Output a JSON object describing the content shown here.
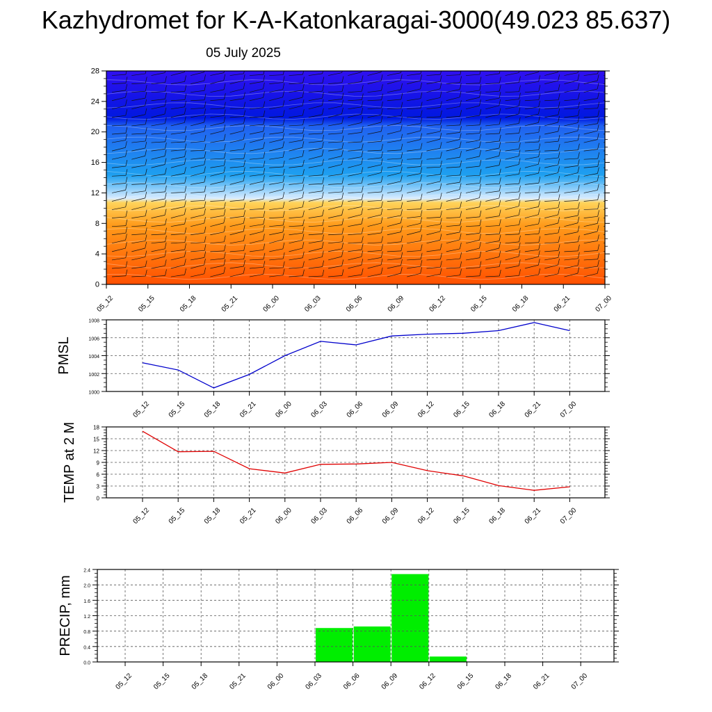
{
  "header": {
    "title": "Kazhydromet for K-A-Katonkaragai-3000(49.023 85.637)",
    "subtitle": "05 July 2025"
  },
  "colors": {
    "pmsl_line": "#0000cc",
    "temp_line": "#e00000",
    "precip_bar": "#00ee00",
    "cross_warm_low": "#ff5000",
    "cross_warm_high": "#ffd35a",
    "cross_cold_low": "#1ea0f0",
    "cross_cold_high": "#3010f0"
  },
  "chart_data": [
    {
      "type": "heatmap",
      "name": "cross-section",
      "x": [
        "05_12",
        "05_15",
        "05_18",
        "05_21",
        "06_00",
        "06_03",
        "06_06",
        "06_09",
        "06_12",
        "06_15",
        "06_18",
        "06_21",
        "07_00"
      ],
      "yticks": [
        0,
        4,
        8,
        12,
        16,
        20,
        24,
        28
      ],
      "ylim": [
        0,
        28
      ],
      "color_transition_level": 11,
      "has_wind_barbs": true
    },
    {
      "type": "line",
      "name": "pmsl",
      "ylabel": "PMSL",
      "x": [
        "05_12",
        "05_15",
        "05_18",
        "05_21",
        "06_00",
        "06_03",
        "06_06",
        "06_09",
        "06_12",
        "06_15",
        "06_18",
        "06_21",
        "07_00"
      ],
      "values": [
        1003.2,
        1002.4,
        1000.4,
        1001.9,
        1004.0,
        1005.6,
        1005.2,
        1006.2,
        1006.4,
        1006.5,
        1006.8,
        1007.7,
        1006.8
      ],
      "yticks": [
        1000,
        1002,
        1004,
        1006,
        1008
      ],
      "ylim": [
        1000,
        1008
      ],
      "grid": true
    },
    {
      "type": "line",
      "name": "temp",
      "ylabel": "TEMP at 2 M",
      "x": [
        "05_12",
        "05_15",
        "05_18",
        "05_21",
        "06_00",
        "06_03",
        "06_06",
        "06_09",
        "06_12",
        "06_15",
        "06_18",
        "06_21",
        "07_00"
      ],
      "values": [
        16.9,
        11.7,
        11.8,
        7.4,
        6.3,
        8.5,
        8.6,
        9.0,
        6.9,
        5.6,
        3.1,
        1.9,
        2.8
      ],
      "yticks": [
        0,
        3,
        6,
        9,
        12,
        15,
        18
      ],
      "ylim": [
        0,
        18
      ],
      "grid": true
    },
    {
      "type": "bar",
      "name": "precip",
      "ylabel": "PRECIP, mm",
      "x": [
        "05_12",
        "05_15",
        "05_18",
        "05_21",
        "06_00",
        "06_03",
        "06_06",
        "06_09",
        "06_12",
        "06_15",
        "06_18",
        "06_21",
        "07_00"
      ],
      "values": [
        0,
        0,
        0,
        0,
        0,
        0,
        0.88,
        0.92,
        2.28,
        0.14,
        0,
        0,
        0
      ],
      "yticks": [
        "0.0",
        "0.4",
        "0.8",
        "1.2",
        "1.6",
        "2.0",
        "2.4"
      ],
      "ylim": [
        0,
        2.4
      ],
      "grid": true
    }
  ]
}
